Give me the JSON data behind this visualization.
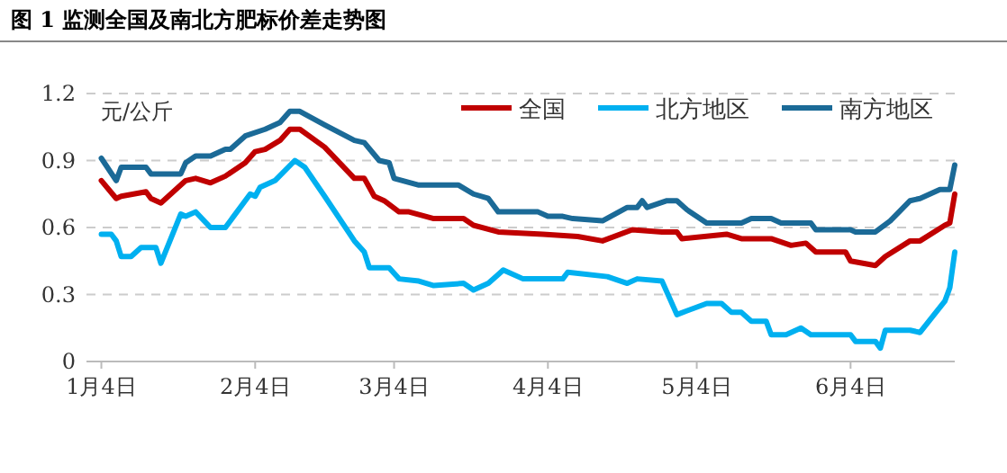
{
  "chart_data": {
    "type": "line",
    "title": "图 1  监测全国及南北方肥标价差走势图",
    "ylabel": "元/公斤",
    "xlim": [
      "--01-01",
      "--06-25"
    ],
    "xticks": [
      {
        "value": "--01-04",
        "label": "1月4日"
      },
      {
        "value": "--02-04",
        "label": "2月4日"
      },
      {
        "value": "--03-04",
        "label": "3月4日"
      },
      {
        "value": "--04-04",
        "label": "4月4日"
      },
      {
        "value": "--05-04",
        "label": "5月4日"
      },
      {
        "value": "--06-04",
        "label": "6月4日"
      }
    ],
    "ylim": [
      0,
      1.2
    ],
    "yticks": [
      0,
      0.3,
      0.6,
      0.9,
      1.2
    ],
    "grid": "y",
    "legend": "top right",
    "marker": "none",
    "line_style": "solid",
    "series": [
      {
        "name": "全国",
        "color": "#c00000",
        "x": [
          "--01-04",
          "--01-07",
          "--01-08",
          "--01-13",
          "--01-14",
          "--01-16",
          "--01-21",
          "--01-23",
          "--01-26",
          "--01-29",
          "--02-02",
          "--02-04",
          "--02-06",
          "--02-09",
          "--02-11",
          "--02-13",
          "--02-18",
          "--02-24",
          "--02-26",
          "--02-28",
          "--03-02",
          "--03-05",
          "--03-07",
          "--03-12",
          "--03-18",
          "--03-20",
          "--03-25",
          "--04-03",
          "--04-10",
          "--04-15",
          "--04-21",
          "--04-27",
          "--04-30",
          "--05-01",
          "--05-10",
          "--05-13",
          "--05-19",
          "--05-23",
          "--05-26",
          "--05-28",
          "--06-03",
          "--06-04",
          "--06-09",
          "--06-11",
          "--06-16",
          "--06-18",
          "--06-23",
          "--06-24",
          "--06-25"
        ],
        "values": [
          0.81,
          0.73,
          0.74,
          0.76,
          0.73,
          0.71,
          0.81,
          0.82,
          0.8,
          0.83,
          0.89,
          0.94,
          0.95,
          0.99,
          1.04,
          1.04,
          0.96,
          0.82,
          0.82,
          0.74,
          0.72,
          0.67,
          0.67,
          0.64,
          0.64,
          0.61,
          0.58,
          0.57,
          0.56,
          0.54,
          0.59,
          0.58,
          0.58,
          0.55,
          0.57,
          0.55,
          0.55,
          0.52,
          0.53,
          0.49,
          0.49,
          0.45,
          0.43,
          0.47,
          0.54,
          0.54,
          0.61,
          0.62,
          0.75
        ]
      },
      {
        "name": "北方地区",
        "color": "#00b0f0",
        "x": [
          "--01-04",
          "--01-06",
          "--01-07",
          "--01-08",
          "--01-10",
          "--01-12",
          "--01-15",
          "--01-16",
          "--01-20",
          "--01-21",
          "--01-23",
          "--01-26",
          "--01-29",
          "--02-03",
          "--02-04",
          "--02-05",
          "--02-08",
          "--02-12",
          "--02-14",
          "--02-18",
          "--02-24",
          "--02-26",
          "--02-27",
          "--03-03",
          "--03-05",
          "--03-09",
          "--03-12",
          "--03-18",
          "--03-20",
          "--03-23",
          "--03-25",
          "--03-26",
          "--03-30",
          "--04-07",
          "--04-08",
          "--04-16",
          "--04-20",
          "--04-22",
          "--04-27",
          "--04-30",
          "--05-06",
          "--05-09",
          "--05-11",
          "--05-13",
          "--05-15",
          "--05-18",
          "--05-19",
          "--05-22",
          "--05-25",
          "--05-27",
          "--06-04",
          "--06-05",
          "--06-09",
          "--06-10",
          "--06-11",
          "--06-16",
          "--06-18",
          "--06-23",
          "--06-24",
          "--06-25"
        ],
        "values": [
          0.57,
          0.57,
          0.54,
          0.47,
          0.47,
          0.51,
          0.51,
          0.44,
          0.66,
          0.65,
          0.67,
          0.6,
          0.6,
          0.75,
          0.74,
          0.78,
          0.81,
          0.9,
          0.87,
          0.74,
          0.54,
          0.49,
          0.42,
          0.42,
          0.37,
          0.36,
          0.34,
          0.35,
          0.32,
          0.35,
          0.39,
          0.41,
          0.37,
          0.37,
          0.4,
          0.38,
          0.35,
          0.37,
          0.36,
          0.21,
          0.26,
          0.26,
          0.22,
          0.22,
          0.18,
          0.18,
          0.12,
          0.12,
          0.15,
          0.12,
          0.12,
          0.09,
          0.09,
          0.06,
          0.14,
          0.14,
          0.13,
          0.27,
          0.33,
          0.49
        ]
      },
      {
        "name": "南方地区",
        "color": "#1b6a97",
        "x": [
          "--01-04",
          "--01-07",
          "--01-08",
          "--01-13",
          "--01-14",
          "--01-20",
          "--01-21",
          "--01-23",
          "--01-26",
          "--01-29",
          "--01-30",
          "--02-02",
          "--02-06",
          "--02-09",
          "--02-11",
          "--02-13",
          "--02-18",
          "--02-24",
          "--02-26",
          "--03-01",
          "--03-03",
          "--03-04",
          "--03-09",
          "--03-17",
          "--03-20",
          "--03-23",
          "--03-25",
          "--04-02",
          "--04-04",
          "--04-07",
          "--04-09",
          "--04-15",
          "--04-20",
          "--04-22",
          "--04-23",
          "--04-24",
          "--04-28",
          "--04-30",
          "--05-02",
          "--05-06",
          "--05-13",
          "--05-15",
          "--05-19",
          "--05-21",
          "--05-27",
          "--05-28",
          "--06-04",
          "--06-05",
          "--06-09",
          "--06-12",
          "--06-16",
          "--06-18",
          "--06-22",
          "--06-24",
          "--06-25"
        ],
        "values": [
          0.91,
          0.81,
          0.87,
          0.87,
          0.84,
          0.84,
          0.89,
          0.92,
          0.92,
          0.95,
          0.95,
          1.01,
          1.04,
          1.07,
          1.12,
          1.12,
          1.06,
          0.99,
          0.98,
          0.9,
          0.89,
          0.82,
          0.79,
          0.79,
          0.75,
          0.73,
          0.67,
          0.67,
          0.65,
          0.65,
          0.64,
          0.63,
          0.69,
          0.69,
          0.72,
          0.69,
          0.72,
          0.72,
          0.68,
          0.62,
          0.62,
          0.64,
          0.64,
          0.62,
          0.62,
          0.59,
          0.59,
          0.58,
          0.58,
          0.63,
          0.72,
          0.73,
          0.77,
          0.77,
          0.88
        ]
      }
    ]
  }
}
